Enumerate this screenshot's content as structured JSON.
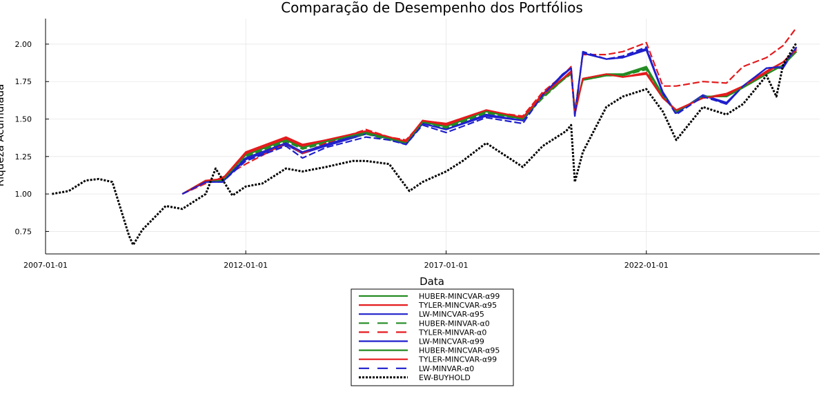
{
  "chart_data": {
    "type": "line",
    "title": "Comparação de Desempenho dos Portfólios",
    "xlabel": "Data",
    "ylabel": "Riqueza Acumulada",
    "xlim": [
      "2007-01-01",
      "2026-05-01"
    ],
    "ylim": [
      0.6,
      2.17
    ],
    "xticks": [
      "2007-01-01",
      "2012-01-01",
      "2017-01-01",
      "2022-01-01"
    ],
    "yticks": [
      0.75,
      1.0,
      1.25,
      1.5,
      1.75,
      2.0
    ],
    "ytick_labels": [
      "0.75",
      "1.00",
      "1.25",
      "1.50",
      "1.75",
      "2.00"
    ],
    "grid": true,
    "legend_position": "bottom-center (outside)",
    "series": [
      {
        "name": "HUBER-MINCVAR-α99",
        "color": "#228b22",
        "dash": "solid",
        "x": [
          "2010-06-01",
          "2011-01-01",
          "2011-06-01",
          "2012-01-01",
          "2013-01-01",
          "2013-06-01",
          "2014-01-01",
          "2015-01-01",
          "2015-08-01",
          "2016-01-01",
          "2016-06-01",
          "2017-01-01",
          "2018-01-01",
          "2018-12-01",
          "2019-06-01",
          "2019-12-01",
          "2020-02-15",
          "2020-03-20",
          "2020-06-01",
          "2021-01-01",
          "2021-06-01",
          "2022-01-01",
          "2022-06-01",
          "2022-10-01",
          "2023-06-01",
          "2024-01-01",
          "2024-06-01",
          "2025-01-01",
          "2025-06-01",
          "2025-10-01"
        ],
        "y": [
          1.0,
          1.09,
          1.09,
          1.26,
          1.36,
          1.31,
          1.35,
          1.41,
          1.37,
          1.34,
          1.48,
          1.45,
          1.55,
          1.5,
          1.65,
          1.76,
          1.81,
          1.56,
          1.76,
          1.79,
          1.79,
          1.84,
          1.65,
          1.55,
          1.65,
          1.65,
          1.71,
          1.8,
          1.86,
          1.95
        ]
      },
      {
        "name": "TYLER-MINCVAR-α95",
        "color": "#e41a1c",
        "dash": "solid",
        "x": [
          "2010-06-01",
          "2011-01-01",
          "2011-06-01",
          "2012-01-01",
          "2013-01-01",
          "2013-06-01",
          "2014-01-01",
          "2015-01-01",
          "2015-08-01",
          "2016-01-01",
          "2016-06-01",
          "2017-01-01",
          "2018-01-01",
          "2018-12-01",
          "2019-06-01",
          "2019-12-01",
          "2020-02-15",
          "2020-03-20",
          "2020-06-01",
          "2021-01-01",
          "2021-06-01",
          "2022-01-01",
          "2022-06-01",
          "2022-10-01",
          "2023-06-01",
          "2024-01-01",
          "2024-06-01",
          "2025-01-01",
          "2025-06-01",
          "2025-10-01"
        ],
        "y": [
          1.0,
          1.08,
          1.1,
          1.28,
          1.38,
          1.33,
          1.36,
          1.42,
          1.38,
          1.35,
          1.49,
          1.47,
          1.56,
          1.51,
          1.67,
          1.77,
          1.82,
          1.53,
          1.77,
          1.8,
          1.78,
          1.8,
          1.64,
          1.56,
          1.64,
          1.67,
          1.72,
          1.82,
          1.88,
          1.97
        ]
      },
      {
        "name": "LW-MINCVAR-α95",
        "color": "#1f1fcc",
        "dash": "solid",
        "x": [
          "2010-06-01",
          "2011-01-01",
          "2011-06-01",
          "2012-01-01",
          "2013-01-01",
          "2013-06-01",
          "2014-01-01",
          "2015-01-01",
          "2015-08-01",
          "2016-01-01",
          "2016-06-01",
          "2017-01-01",
          "2018-01-01",
          "2018-12-01",
          "2019-06-01",
          "2019-12-01",
          "2020-02-15",
          "2020-03-20",
          "2020-06-01",
          "2021-01-01",
          "2021-06-01",
          "2022-01-01",
          "2022-06-01",
          "2022-10-01",
          "2023-06-01",
          "2024-01-01",
          "2024-06-01",
          "2025-01-01",
          "2025-06-01",
          "2025-10-01"
        ],
        "y": [
          1.0,
          1.08,
          1.08,
          1.23,
          1.33,
          1.27,
          1.32,
          1.4,
          1.37,
          1.33,
          1.47,
          1.43,
          1.52,
          1.49,
          1.66,
          1.8,
          1.84,
          1.52,
          1.94,
          1.9,
          1.91,
          1.97,
          1.68,
          1.54,
          1.66,
          1.6,
          1.72,
          1.84,
          1.84,
          1.98
        ]
      },
      {
        "name": "HUBER-MINVAR-α0",
        "color": "#228b22",
        "dash": "dashed",
        "x": [
          "2010-06-01",
          "2011-01-01",
          "2011-06-01",
          "2012-01-01",
          "2013-01-01",
          "2013-06-01",
          "2014-01-01",
          "2015-01-01",
          "2015-08-01",
          "2016-01-01",
          "2016-06-01",
          "2017-01-01",
          "2018-01-01",
          "2018-12-01",
          "2019-06-01",
          "2019-12-01",
          "2020-02-15",
          "2020-03-20",
          "2020-06-01",
          "2021-01-01",
          "2021-06-01",
          "2022-01-01",
          "2022-06-01",
          "2022-10-01",
          "2023-06-01",
          "2024-01-01",
          "2024-06-01",
          "2025-01-01",
          "2025-06-01",
          "2025-10-01"
        ],
        "y": [
          1.0,
          1.08,
          1.09,
          1.25,
          1.35,
          1.3,
          1.34,
          1.4,
          1.36,
          1.34,
          1.47,
          1.44,
          1.54,
          1.5,
          1.64,
          1.76,
          1.8,
          1.55,
          1.76,
          1.79,
          1.79,
          1.83,
          1.65,
          1.55,
          1.65,
          1.65,
          1.71,
          1.8,
          1.86,
          1.95
        ]
      },
      {
        "name": "TYLER-MINVAR-α0",
        "color": "#e41a1c",
        "dash": "dashed",
        "x": [
          "2010-06-01",
          "2011-01-01",
          "2011-06-01",
          "2012-01-01",
          "2013-01-01",
          "2013-06-01",
          "2014-01-01",
          "2015-01-01",
          "2015-08-01",
          "2016-01-01",
          "2016-06-01",
          "2017-01-01",
          "2018-01-01",
          "2018-12-01",
          "2019-06-01",
          "2019-12-01",
          "2020-02-15",
          "2020-03-20",
          "2020-06-01",
          "2021-01-01",
          "2021-06-01",
          "2022-01-01",
          "2022-06-01",
          "2022-10-01",
          "2023-06-01",
          "2024-01-01",
          "2024-06-01",
          "2025-01-01",
          "2025-06-01",
          "2025-10-01"
        ],
        "y": [
          1.0,
          1.07,
          1.11,
          1.2,
          1.34,
          1.27,
          1.34,
          1.43,
          1.38,
          1.36,
          1.48,
          1.46,
          1.55,
          1.52,
          1.68,
          1.79,
          1.85,
          1.55,
          1.93,
          1.93,
          1.95,
          2.01,
          1.72,
          1.72,
          1.75,
          1.74,
          1.85,
          1.91,
          1.99,
          2.11
        ]
      },
      {
        "name": "LW-MINCVAR-α99",
        "color": "#1f1fcc",
        "dash": "solid",
        "x": [
          "2010-06-01",
          "2011-01-01",
          "2011-06-01",
          "2012-01-01",
          "2013-01-01",
          "2013-06-01",
          "2014-01-01",
          "2015-01-01",
          "2015-08-01",
          "2016-01-01",
          "2016-06-01",
          "2017-01-01",
          "2018-01-01",
          "2018-12-01",
          "2019-06-01",
          "2019-12-01",
          "2020-02-15",
          "2020-03-20",
          "2020-06-01",
          "2021-01-01",
          "2021-06-01",
          "2022-01-01",
          "2022-06-01",
          "2022-10-01",
          "2023-06-01",
          "2024-01-01",
          "2024-06-01",
          "2025-01-01",
          "2025-06-01",
          "2025-10-01"
        ],
        "y": [
          1.0,
          1.08,
          1.08,
          1.24,
          1.34,
          1.28,
          1.33,
          1.41,
          1.37,
          1.33,
          1.47,
          1.43,
          1.53,
          1.49,
          1.66,
          1.79,
          1.84,
          1.53,
          1.94,
          1.9,
          1.91,
          1.96,
          1.67,
          1.54,
          1.66,
          1.61,
          1.72,
          1.84,
          1.85,
          1.98
        ]
      },
      {
        "name": "HUBER-MINCVAR-α95",
        "color": "#228b22",
        "dash": "solid",
        "x": [
          "2010-06-01",
          "2011-01-01",
          "2011-06-01",
          "2012-01-01",
          "2013-01-01",
          "2013-06-01",
          "2014-01-01",
          "2015-01-01",
          "2015-08-01",
          "2016-01-01",
          "2016-06-01",
          "2017-01-01",
          "2018-01-01",
          "2018-12-01",
          "2019-06-01",
          "2019-12-01",
          "2020-02-15",
          "2020-03-20",
          "2020-06-01",
          "2021-01-01",
          "2021-06-01",
          "2022-01-01",
          "2022-06-01",
          "2022-10-01",
          "2023-06-01",
          "2024-01-01",
          "2024-06-01",
          "2025-01-01",
          "2025-06-01",
          "2025-10-01"
        ],
        "y": [
          1.0,
          1.09,
          1.09,
          1.26,
          1.36,
          1.31,
          1.35,
          1.41,
          1.37,
          1.34,
          1.48,
          1.45,
          1.55,
          1.5,
          1.65,
          1.76,
          1.81,
          1.56,
          1.77,
          1.8,
          1.8,
          1.85,
          1.66,
          1.55,
          1.65,
          1.65,
          1.71,
          1.8,
          1.86,
          1.95
        ]
      },
      {
        "name": "TYLER-MINCVAR-α99",
        "color": "#e41a1c",
        "dash": "solid",
        "x": [
          "2010-06-01",
          "2011-01-01",
          "2011-06-01",
          "2012-01-01",
          "2013-01-01",
          "2013-06-01",
          "2014-01-01",
          "2015-01-01",
          "2015-08-01",
          "2016-01-01",
          "2016-06-01",
          "2017-01-01",
          "2018-01-01",
          "2018-12-01",
          "2019-06-01",
          "2019-12-01",
          "2020-02-15",
          "2020-03-20",
          "2020-06-01",
          "2021-01-01",
          "2021-06-01",
          "2022-01-01",
          "2022-06-01",
          "2022-10-01",
          "2023-06-01",
          "2024-01-01",
          "2024-06-01",
          "2025-01-01",
          "2025-06-01",
          "2025-10-01"
        ],
        "y": [
          1.0,
          1.09,
          1.1,
          1.27,
          1.37,
          1.32,
          1.36,
          1.42,
          1.38,
          1.35,
          1.49,
          1.46,
          1.56,
          1.51,
          1.66,
          1.77,
          1.81,
          1.54,
          1.77,
          1.8,
          1.78,
          1.81,
          1.64,
          1.56,
          1.64,
          1.66,
          1.72,
          1.81,
          1.88,
          1.96
        ]
      },
      {
        "name": "LW-MINVAR-α0",
        "color": "#1f1fcc",
        "dash": "dashed",
        "x": [
          "2010-06-01",
          "2011-01-01",
          "2011-06-01",
          "2012-01-01",
          "2013-01-01",
          "2013-06-01",
          "2014-01-01",
          "2015-01-01",
          "2015-08-01",
          "2016-01-01",
          "2016-06-01",
          "2017-01-01",
          "2018-01-01",
          "2018-12-01",
          "2019-06-01",
          "2019-12-01",
          "2020-02-15",
          "2020-03-20",
          "2020-06-01",
          "2021-01-01",
          "2021-06-01",
          "2022-01-01",
          "2022-06-01",
          "2022-10-01",
          "2023-06-01",
          "2024-01-01",
          "2024-06-01",
          "2025-01-01",
          "2025-06-01",
          "2025-10-01"
        ],
        "y": [
          1.0,
          1.08,
          1.08,
          1.22,
          1.32,
          1.24,
          1.31,
          1.38,
          1.36,
          1.33,
          1.46,
          1.41,
          1.51,
          1.47,
          1.66,
          1.8,
          1.84,
          1.52,
          1.95,
          1.9,
          1.92,
          1.98,
          1.67,
          1.53,
          1.65,
          1.6,
          1.72,
          1.84,
          1.85,
          1.98
        ]
      },
      {
        "name": "EW-BUYHOLD",
        "color": "#000000",
        "dash": "dotted",
        "x": [
          "2007-03-01",
          "2007-08-01",
          "2008-01-01",
          "2008-05-01",
          "2008-09-01",
          "2009-02-01",
          "2009-03-10",
          "2009-06-01",
          "2010-01-01",
          "2010-06-01",
          "2011-01-01",
          "2011-04-01",
          "2011-09-01",
          "2012-01-01",
          "2012-06-01",
          "2013-01-01",
          "2013-06-01",
          "2014-01-01",
          "2014-09-01",
          "2015-01-01",
          "2015-08-01",
          "2016-02-01",
          "2016-06-01",
          "2017-01-01",
          "2017-06-01",
          "2018-01-01",
          "2018-12-01",
          "2019-06-01",
          "2020-01-01",
          "2020-02-15",
          "2020-03-20",
          "2020-06-01",
          "2021-01-01",
          "2021-06-01",
          "2022-01-01",
          "2022-06-01",
          "2022-10-01",
          "2023-06-01",
          "2024-01-01",
          "2024-06-01",
          "2025-01-01",
          "2025-04-01",
          "2025-06-01",
          "2025-10-01"
        ],
        "y": [
          1.0,
          1.02,
          1.09,
          1.1,
          1.08,
          0.72,
          0.66,
          0.76,
          0.92,
          0.9,
          1.0,
          1.17,
          0.99,
          1.05,
          1.07,
          1.17,
          1.15,
          1.18,
          1.22,
          1.22,
          1.2,
          1.02,
          1.08,
          1.15,
          1.22,
          1.34,
          1.18,
          1.32,
          1.42,
          1.46,
          1.08,
          1.28,
          1.58,
          1.65,
          1.7,
          1.55,
          1.36,
          1.58,
          1.53,
          1.6,
          1.79,
          1.65,
          1.86,
          2.01
        ]
      }
    ]
  }
}
